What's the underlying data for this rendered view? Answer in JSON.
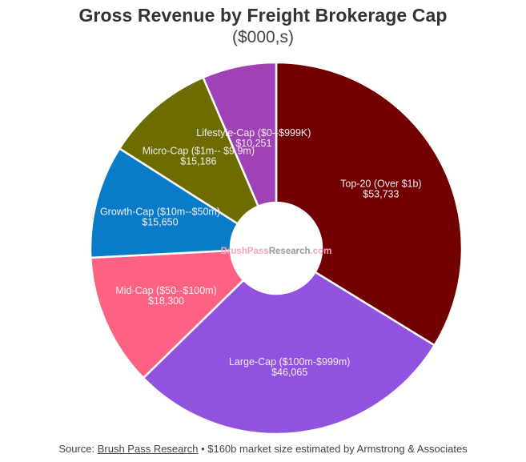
{
  "header": {
    "title": "Gross Revenue by Freight Brokerage Cap",
    "subtitle": "($000,s)"
  },
  "watermark": {
    "part1": "BrushPass",
    "part2": "Research",
    "part3": ".com",
    "color1": "#f2a7b8",
    "color2": "#999999",
    "color3": "#f2a7b8"
  },
  "footer": {
    "prefix": "Source: ",
    "link_text": "Brush Pass Research",
    "suffix": " • $160b market size estimated by Armstrong & Associates"
  },
  "chart_data": {
    "type": "pie",
    "variant": "donut",
    "title": "Gross Revenue by Freight Brokerage Cap",
    "subtitle": "($000,s)",
    "units": "$000s",
    "start_angle_deg": 0,
    "direction": "clockwise",
    "slices": [
      {
        "label": "Top-20 (Over $1b)",
        "value": 53733,
        "display": "$53,733",
        "color": "#720000"
      },
      {
        "label": "Large-Cap ($100m-$999m)",
        "value": 46065,
        "display": "$46,065",
        "color": "#9152e0"
      },
      {
        "label": "Mid-Cap ($50--$100m)",
        "value": 18300,
        "display": "$18,300",
        "color": "#fe6282"
      },
      {
        "label": "Growth-Cap ($10m--$50m)",
        "value": 15650,
        "display": "$15,650",
        "color": "#0a7bc6"
      },
      {
        "label": "Micro-Cap ($1m-- $9.9m)",
        "value": 15186,
        "display": "$15,186",
        "color": "#6d6c00"
      },
      {
        "label": "Lifestyle-Cap ($0--$999K)",
        "value": 10251,
        "display": "$10,251",
        "color": "#a042b5"
      }
    ],
    "legend": "none (labels on slices)",
    "source": "Brush Pass Research • $160b market size estimated by Armstrong & Associates"
  }
}
